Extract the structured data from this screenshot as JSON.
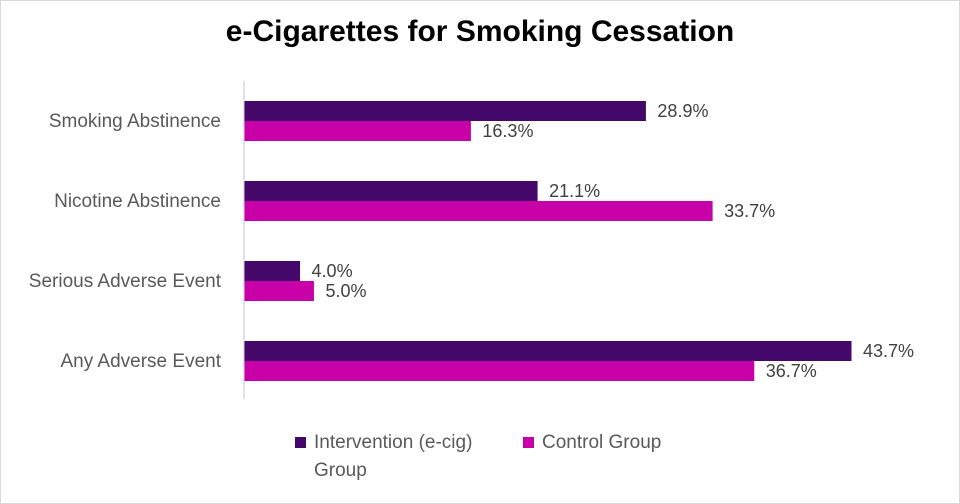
{
  "chart_data": {
    "type": "bar",
    "orientation": "horizontal",
    "title": "e-Cigarettes for Smoking Cessation",
    "categories": [
      "Smoking Abstinence",
      "Nicotine Abstinence",
      "Serious Adverse Event",
      "Any Adverse Event"
    ],
    "series": [
      {
        "name": "Intervention (e-cig) Group",
        "color": "#44086a",
        "values": [
          28.9,
          21.1,
          4.0,
          43.7
        ],
        "labels": [
          "28.9%",
          "21.1%",
          "4.0%",
          "43.7%"
        ]
      },
      {
        "name": "Control Group",
        "color": "#c800a8",
        "values": [
          16.3,
          33.7,
          5.0,
          36.7
        ],
        "labels": [
          "16.3%",
          "33.7%",
          "5.0%",
          "36.7%"
        ]
      }
    ],
    "xlim": [
      0,
      50
    ],
    "grid": false,
    "legend_position": "bottom"
  }
}
